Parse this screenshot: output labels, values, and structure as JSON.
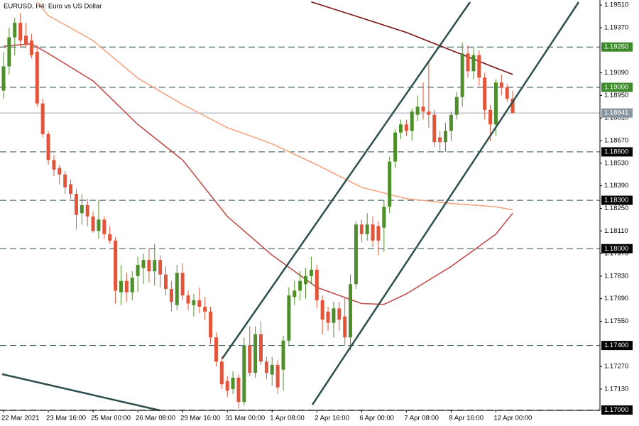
{
  "chart_data": {
    "type": "candlestick",
    "title": "EURUSD, H4:  Euro vs US Dollar",
    "categories": [
      "22 Mar 2021",
      null,
      null,
      null,
      null,
      null,
      null,
      null,
      "23 Mar 16:00",
      null,
      null,
      null,
      null,
      null,
      null,
      null,
      "25 Mar 00:00",
      null,
      null,
      null,
      null,
      null,
      null,
      null,
      "26 Mar 08:00",
      null,
      null,
      null,
      null,
      null,
      null,
      null,
      "29 Mar 16:00",
      null,
      null,
      null,
      null,
      null,
      null,
      null,
      "31 Mar 00:00",
      null,
      null,
      null,
      null,
      null,
      null,
      null,
      "1 Apr 08:00",
      null,
      null,
      null,
      null,
      null,
      null,
      null,
      "2 Apr 16:00",
      null,
      null,
      null,
      null,
      null,
      null,
      null,
      "6 Apr 00:00",
      null,
      null,
      null,
      null,
      null,
      null,
      null,
      "7 Apr 08:00",
      null,
      null,
      null,
      null,
      null,
      null,
      null,
      "8 Apr 16:00",
      null,
      null,
      null,
      null,
      null,
      null,
      null,
      "12 Apr 00:00",
      null,
      null,
      null
    ],
    "open": [
      1.1898,
      1.1913,
      1.1931,
      1.194,
      1.1932,
      1.1929,
      1.1922,
      1.189,
      1.1871,
      1.1855,
      1.185,
      1.1846,
      1.184,
      1.1834,
      1.1822,
      1.1827,
      1.182,
      1.1811,
      1.1818,
      1.1809,
      1.1805,
      1.1773,
      1.178,
      1.1773,
      1.1783,
      1.1788,
      1.1793,
      1.1786,
      1.1793,
      1.1784,
      1.1775,
      1.1765,
      1.1785,
      1.1771,
      1.1765,
      1.1768,
      1.1764,
      1.1761,
      1.1745,
      1.173,
      1.1718,
      1.1713,
      1.172,
      1.1705,
      1.174,
      1.1723,
      1.1747,
      1.173,
      1.1722,
      1.1728,
      1.1725,
      1.1743,
      1.177,
      1.1774,
      1.1778,
      1.1783,
      1.1787,
      1.1768,
      1.1761,
      1.1754,
      1.1763,
      1.1758,
      1.1745,
      1.1778,
      1.1815,
      1.1809,
      1.1815,
      1.1814,
      1.1813,
      1.1826,
      1.1854,
      1.1872,
      1.1877,
      1.1873,
      1.1883,
      1.1888,
      1.1885,
      1.1883,
      1.1869,
      1.1866,
      1.1873,
      1.1883,
      1.1894,
      1.1921,
      1.191,
      1.192,
      1.1906,
      1.1886,
      1.1877,
      1.1903,
      1.19,
      1.1893
    ],
    "high": [
      1.1922,
      1.1937,
      1.1943,
      1.1946,
      1.194,
      1.1933,
      1.1926,
      1.1893,
      1.1873,
      1.1858,
      1.1852,
      1.1848,
      1.1843,
      1.1837,
      1.1834,
      1.1831,
      1.1823,
      1.183,
      1.182,
      1.1814,
      1.1807,
      1.179,
      1.1785,
      1.1786,
      1.1795,
      1.1797,
      1.18,
      1.1803,
      1.1796,
      1.1789,
      1.178,
      1.179,
      1.1791,
      1.1774,
      1.1772,
      1.1776,
      1.177,
      1.1764,
      1.1748,
      1.1733,
      1.1721,
      1.1724,
      1.1722,
      1.1745,
      1.1752,
      1.1752,
      1.1755,
      1.1733,
      1.1733,
      1.1731,
      1.1746,
      1.1776,
      1.178,
      1.1786,
      1.1788,
      1.1795,
      1.179,
      1.1771,
      1.1764,
      1.1767,
      1.1767,
      1.177,
      1.1784,
      1.1817,
      1.1818,
      1.1822,
      1.182,
      1.1817,
      1.183,
      1.1857,
      1.1874,
      1.188,
      1.188,
      1.1887,
      1.1895,
      1.1903,
      1.1917,
      1.1886,
      1.1873,
      1.1878,
      1.1885,
      1.1897,
      1.1928,
      1.1926,
      1.1925,
      1.1923,
      1.1909,
      1.1889,
      1.1905,
      1.1908,
      1.1902,
      1.1898
    ],
    "low": [
      1.1893,
      1.1908,
      1.192,
      1.1925,
      1.1925,
      1.1918,
      1.1888,
      1.1869,
      1.1852,
      1.1845,
      1.184,
      1.1834,
      1.1831,
      1.1812,
      1.1815,
      1.1814,
      1.181,
      1.1806,
      1.1806,
      1.1803,
      1.1766,
      1.1765,
      1.1767,
      1.1768,
      1.1773,
      1.1778,
      1.1779,
      1.1777,
      1.1776,
      1.1771,
      1.1761,
      1.1762,
      1.1768,
      1.1762,
      1.1758,
      1.176,
      1.1756,
      1.1741,
      1.1727,
      1.1713,
      1.1708,
      1.171,
      1.1701,
      1.1703,
      1.1721,
      1.172,
      1.1728,
      1.1719,
      1.1715,
      1.171,
      1.1712,
      1.174,
      1.1765,
      1.1768,
      1.1769,
      1.1778,
      1.1763,
      1.1747,
      1.1749,
      1.1745,
      1.1749,
      1.174,
      1.1737,
      1.1775,
      1.1804,
      1.1805,
      1.1801,
      1.1796,
      1.1798,
      1.1822,
      1.185,
      1.1868,
      1.187,
      1.1867,
      1.1879,
      1.188,
      1.1875,
      1.1863,
      1.186,
      1.186,
      1.1867,
      1.188,
      1.1888,
      1.1906,
      1.1905,
      1.1901,
      1.188,
      1.1867,
      1.187,
      1.1895,
      1.1891,
      1.1884
    ],
    "close": [
      1.1913,
      1.1931,
      1.194,
      1.1929,
      1.1927,
      1.192,
      1.189,
      1.1871,
      1.1855,
      1.1849,
      1.1846,
      1.1838,
      1.1834,
      1.1821,
      1.1827,
      1.182,
      1.1811,
      1.1818,
      1.1809,
      1.1805,
      1.1774,
      1.178,
      1.1773,
      1.1782,
      1.179,
      1.1793,
      1.1786,
      1.1793,
      1.1784,
      1.1775,
      1.1767,
      1.1785,
      1.1771,
      1.1766,
      1.1768,
      1.1764,
      1.1761,
      1.1745,
      1.173,
      1.1716,
      1.1712,
      1.172,
      1.1705,
      1.174,
      1.1723,
      1.1747,
      1.173,
      1.1723,
      1.1728,
      1.1714,
      1.1743,
      1.1771,
      1.1774,
      1.178,
      1.1783,
      1.1787,
      1.1768,
      1.1756,
      1.1754,
      1.1763,
      1.1756,
      1.1745,
      1.1778,
      1.1815,
      1.1809,
      1.1815,
      1.1805,
      1.1805,
      1.1826,
      1.1854,
      1.1872,
      1.1877,
      1.1873,
      1.1885,
      1.1888,
      1.1885,
      1.1883,
      1.1866,
      1.1866,
      1.1873,
      1.1883,
      1.1894,
      1.1921,
      1.191,
      1.192,
      1.1906,
      1.1886,
      1.1877,
      1.1903,
      1.19,
      1.1893,
      1.1884
    ],
    "up_color": "#4f8f2b",
    "down_color": "#e2553a",
    "series": [
      {
        "color": "#f4a582",
        "x": [
          6,
          8,
          16,
          24,
          32,
          40,
          48,
          56,
          64,
          72,
          80,
          88,
          91
        ],
        "values": [
          1.1953,
          1.19445,
          1.1929,
          1.19057,
          1.18894,
          1.1875,
          1.1865,
          1.1852,
          1.1838,
          1.1831,
          1.1828,
          1.1826,
          1.1824
        ]
      },
      {
        "color": "#c0504d",
        "x": [
          0,
          5,
          8,
          16,
          24,
          32,
          40,
          48,
          56,
          64,
          68,
          72,
          80,
          88,
          91
        ],
        "values": [
          1.19255,
          1.1927,
          1.1921,
          1.1904,
          1.1877,
          1.1855,
          1.182,
          1.1796,
          1.1776,
          1.1766,
          1.17655,
          1.1772,
          1.1789,
          1.1809,
          1.1822
        ]
      },
      {
        "color": "#7b1010",
        "x": [
          55,
          64,
          72,
          80,
          88,
          91
        ],
        "values": [
          1.1953,
          1.1943,
          1.1934,
          1.1923,
          1.1912,
          1.1908
        ]
      }
    ],
    "ylim": [
      1.17,
      1.19533
    ],
    "yticks": [
      {
        "value": 1.1951,
        "label": "1.19510"
      },
      {
        "value": 1.1937,
        "label": "1.19370"
      },
      {
        "value": 1.1909,
        "label": "1.19090"
      },
      {
        "value": 1.1895,
        "label": "1.18950"
      },
      {
        "value": 1.1881,
        "label": "1.18810"
      },
      {
        "value": 1.1867,
        "label": "1.18670"
      },
      {
        "value": 1.1853,
        "label": "1.18530"
      },
      {
        "value": 1.1839,
        "label": "1.18390"
      },
      {
        "value": 1.1825,
        "label": "1.18250"
      },
      {
        "value": 1.1811,
        "label": "1.18110"
      },
      {
        "value": 1.1797,
        "label": "1.17970"
      },
      {
        "value": 1.1783,
        "label": "1.17830"
      },
      {
        "value": 1.1769,
        "label": "1.17690"
      },
      {
        "value": 1.1755,
        "label": "1.17550"
      },
      {
        "value": 1.1727,
        "label": "1.17270"
      },
      {
        "value": 1.1713,
        "label": "1.17130"
      }
    ],
    "levels": [
      {
        "value": 1.1925,
        "label": "1.19250",
        "color": "#3c8a2a"
      },
      {
        "value": 1.19,
        "label": "1.19000",
        "color": "#3c8a2a"
      },
      {
        "value": 1.186,
        "label": "1.18600",
        "color": "#000000"
      },
      {
        "value": 1.183,
        "label": "1.18300",
        "color": "#000000"
      },
      {
        "value": 1.18,
        "label": "1.18000",
        "color": "#000000"
      },
      {
        "value": 1.174,
        "label": "1.17400",
        "color": "#000000"
      },
      {
        "value": 1.17,
        "label": "1.17000",
        "color": "#000000"
      }
    ],
    "current_price": {
      "value": 1.18841,
      "color": "#8a96a0"
    }
  }
}
